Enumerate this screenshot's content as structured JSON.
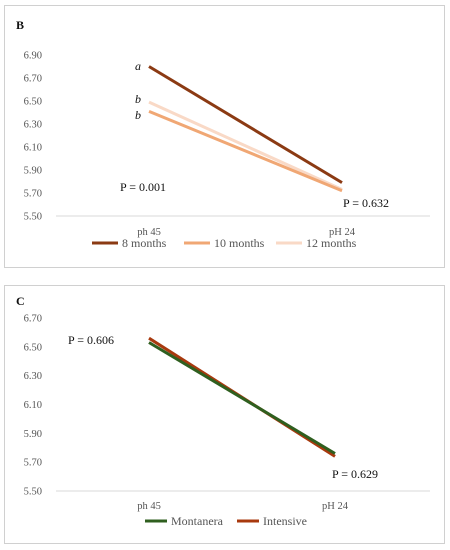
{
  "chart_data": [
    {
      "type": "line",
      "panel": "B",
      "categories": [
        "ph 45",
        "pH 24"
      ],
      "series": [
        {
          "name": "8 months",
          "values": [
            6.8,
            5.79
          ],
          "color": "#8B3A13",
          "group_label": "a"
        },
        {
          "name": "10 months",
          "values": [
            6.41,
            5.72
          ],
          "color": "#F0A774",
          "group_label": "b"
        },
        {
          "name": "12 months",
          "values": [
            6.49,
            5.73
          ],
          "color": "#F9D9C6",
          "group_label": "b"
        }
      ],
      "yticks": [
        "6.90",
        "6.70",
        "6.50",
        "6.30",
        "6.10",
        "5.90",
        "5.70",
        "5.50"
      ],
      "ylim": [
        5.5,
        6.9
      ],
      "annotations": [
        "P = 0.001",
        "P = 0.632"
      ],
      "legend": "bottom",
      "grid": false
    },
    {
      "type": "line",
      "panel": "C",
      "categories": [
        "ph 45",
        "pH 24"
      ],
      "series": [
        {
          "name": "Montanera",
          "values": [
            6.53,
            5.76
          ],
          "color": "#2F5F1F"
        },
        {
          "name": "Intensive",
          "values": [
            6.56,
            5.74
          ],
          "color": "#A8390E"
        }
      ],
      "yticks": [
        "6.70",
        "6.50",
        "6.30",
        "6.10",
        "5.90",
        "5.70",
        "5.50"
      ],
      "ylim": [
        5.5,
        6.7
      ],
      "annotations": [
        "P = 0.606",
        "P = 0.629"
      ],
      "legend": "bottom",
      "grid": false
    }
  ]
}
